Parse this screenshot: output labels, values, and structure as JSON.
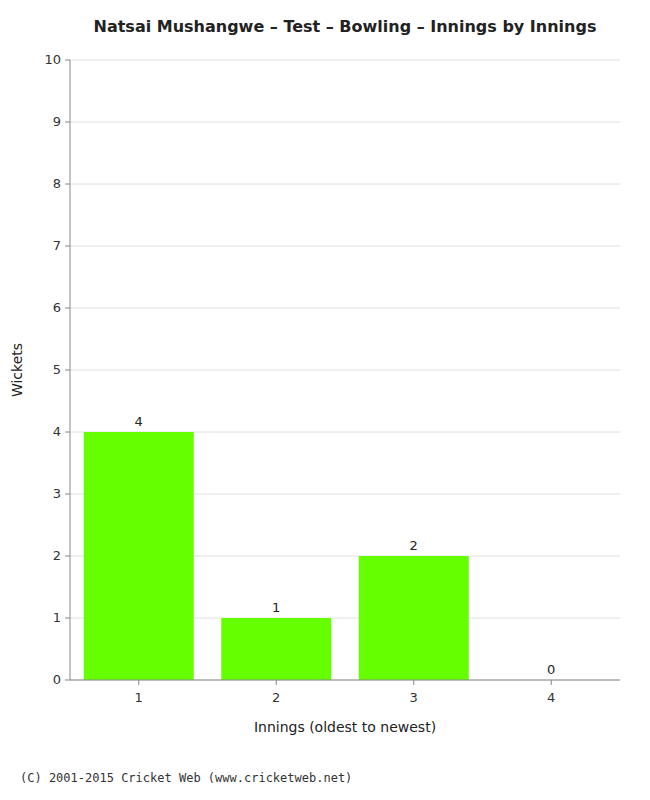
{
  "chart_data": {
    "type": "bar",
    "title": "Natsai Mushangwe – Test – Bowling – Innings by Innings",
    "x_label": "Innings (oldest to newest)",
    "y_label": "Wickets",
    "categories": [
      1,
      2,
      3,
      4
    ],
    "values": [
      4,
      1,
      2,
      0
    ],
    "color": "#66ff00",
    "ylim": [
      0,
      10
    ],
    "yticks": [
      0,
      1,
      2,
      3,
      4,
      5,
      6,
      7,
      8,
      9,
      10
    ],
    "grid": true,
    "data_labels": true,
    "annotations": [
      "(C) 2001-2015 Cricket Web (www.cricketweb.net)"
    ]
  }
}
